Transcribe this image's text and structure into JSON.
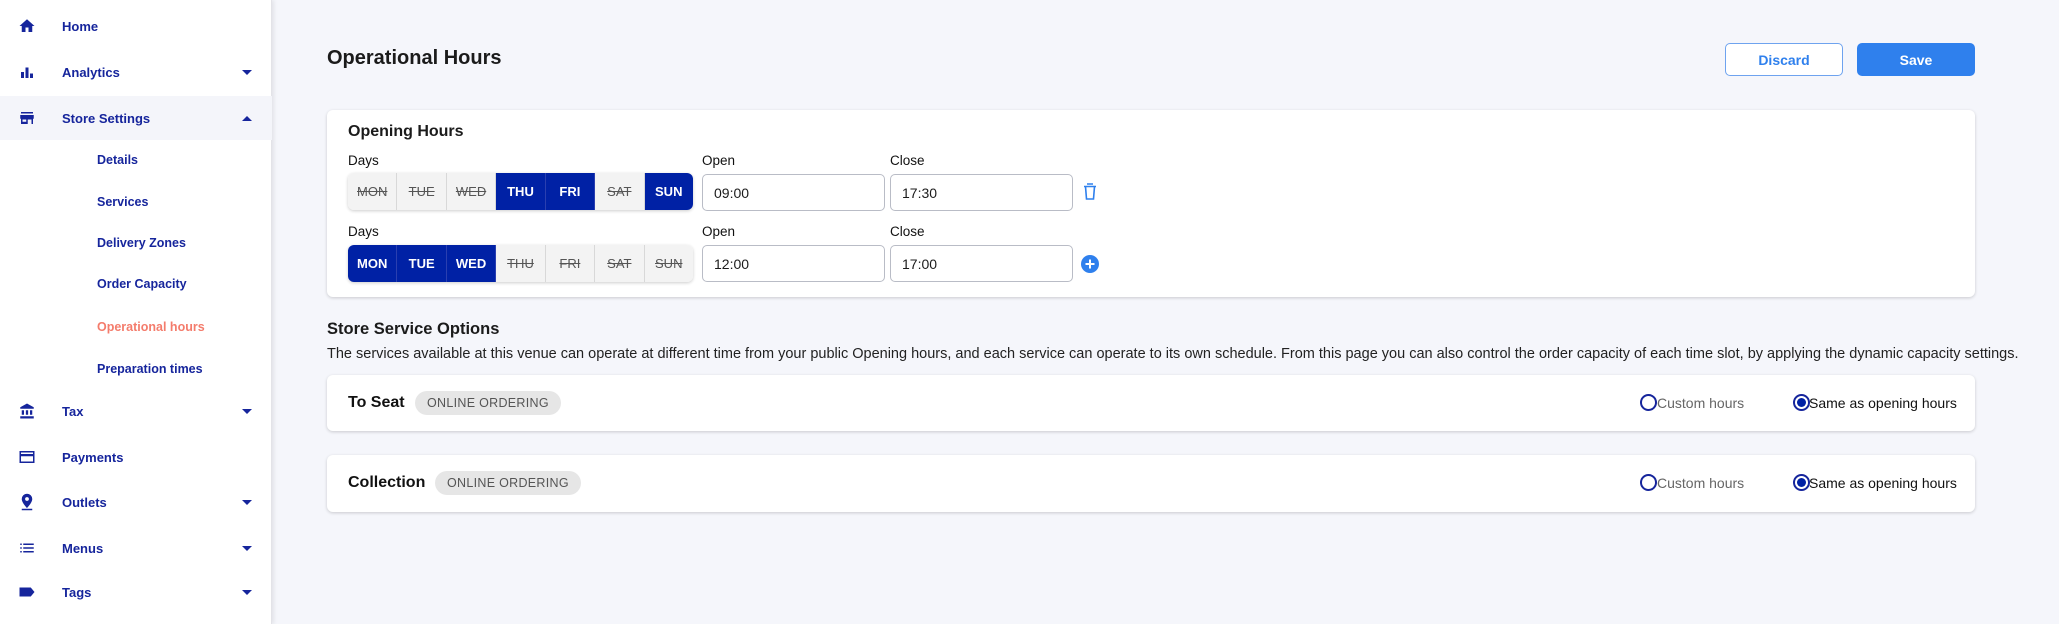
{
  "sidebar": {
    "items": [
      {
        "label": "Home",
        "icon": "home-icon"
      },
      {
        "label": "Analytics",
        "icon": "bar-chart-icon"
      },
      {
        "label": "Store Settings",
        "icon": "store-icon"
      },
      {
        "label": "Tax",
        "icon": "bank-icon"
      },
      {
        "label": "Payments",
        "icon": "credit-card-icon"
      },
      {
        "label": "Outlets",
        "icon": "location-pin-icon"
      },
      {
        "label": "Menus",
        "icon": "list-icon"
      },
      {
        "label": "Tags",
        "icon": "tag-icon"
      }
    ],
    "subitems": [
      "Details",
      "Services",
      "Delivery Zones",
      "Order Capacity",
      "Operational hours",
      "Preparation times"
    ],
    "active_subitem": "Operational hours"
  },
  "header": {
    "title": "Operational Hours",
    "discard_label": "Discard",
    "save_label": "Save"
  },
  "opening_hours": {
    "title": "Opening Hours",
    "days_label": "Days",
    "open_label": "Open",
    "close_label": "Close",
    "day_names": [
      "MON",
      "TUE",
      "WED",
      "THU",
      "FRI",
      "SAT",
      "SUN"
    ],
    "rows": [
      {
        "selected": [
          false,
          false,
          false,
          true,
          true,
          false,
          true
        ],
        "open": "09:00",
        "close": "17:30",
        "action": "delete"
      },
      {
        "selected": [
          true,
          true,
          true,
          false,
          false,
          false,
          false
        ],
        "open": "12:00",
        "close": "17:00",
        "action": "add"
      }
    ]
  },
  "service_options": {
    "title": "Store Service Options",
    "description": "The services available at this venue can operate at different time from your public Opening hours, and each service can operate to its own schedule. From this page you can also control the order capacity of each time slot, by applying the dynamic capacity settings.",
    "custom_label": "Custom hours",
    "same_label": "Same as opening hours",
    "services": [
      {
        "name": "To Seat",
        "badge": "ONLINE ORDERING",
        "selected": "same"
      },
      {
        "name": "Collection",
        "badge": "ONLINE ORDERING",
        "selected": "same"
      }
    ]
  },
  "colors": {
    "nav": "#16259c",
    "active": "#f47c6c",
    "day_selected": "#0021a5",
    "primary": "#2f80ed"
  }
}
